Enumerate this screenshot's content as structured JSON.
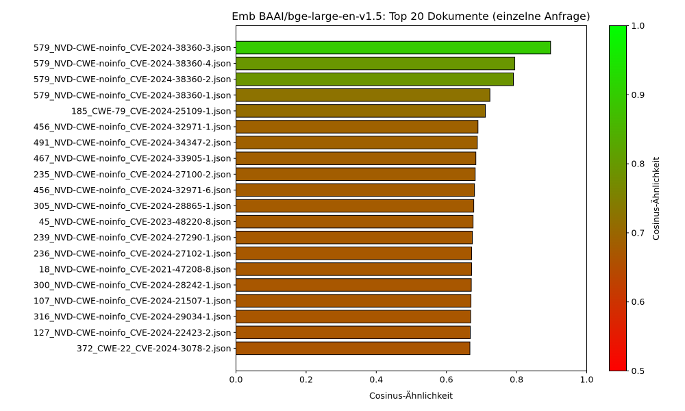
{
  "chart_data": {
    "type": "bar",
    "orientation": "horizontal",
    "title": "Emb BAAI/bge-large-en-v1.5: Top 20 Dokumente (einzelne Anfrage)",
    "xlabel": "Cosinus-Ähnlichkeit",
    "ylabel": "",
    "xlim": [
      0.0,
      1.0
    ],
    "xticks": [
      "0.0",
      "0.2",
      "0.4",
      "0.6",
      "0.8",
      "1.0"
    ],
    "grid": false,
    "categories": [
      "579_NVD-CWE-noinfo_CVE-2024-38360-3.json",
      "579_NVD-CWE-noinfo_CVE-2024-38360-4.json",
      "579_NVD-CWE-noinfo_CVE-2024-38360-2.json",
      "579_NVD-CWE-noinfo_CVE-2024-38360-1.json",
      "185_CWE-79_CVE-2024-25109-1.json",
      "456_NVD-CWE-noinfo_CVE-2024-32971-1.json",
      "491_NVD-CWE-noinfo_CVE-2024-34347-2.json",
      "467_NVD-CWE-noinfo_CVE-2024-33905-1.json",
      "235_NVD-CWE-noinfo_CVE-2024-27100-2.json",
      "456_NVD-CWE-noinfo_CVE-2024-32971-6.json",
      "305_NVD-CWE-noinfo_CVE-2024-28865-1.json",
      "45_NVD-CWE-noinfo_CVE-2023-48220-8.json",
      "239_NVD-CWE-noinfo_CVE-2024-27290-1.json",
      "236_NVD-CWE-noinfo_CVE-2024-27102-1.json",
      "18_NVD-CWE-noinfo_CVE-2021-47208-8.json",
      "300_NVD-CWE-noinfo_CVE-2024-28242-1.json",
      "107_NVD-CWE-noinfo_CVE-2024-21507-1.json",
      "316_NVD-CWE-noinfo_CVE-2024-29034-1.json",
      "127_NVD-CWE-noinfo_CVE-2024-22423-2.json",
      "372_CWE-22_CVE-2024-3078-2.json"
    ],
    "values": [
      0.897,
      0.795,
      0.791,
      0.724,
      0.711,
      0.69,
      0.688,
      0.684,
      0.682,
      0.68,
      0.678,
      0.676,
      0.674,
      0.672,
      0.672,
      0.671,
      0.67,
      0.669,
      0.668,
      0.667
    ],
    "colorbar": {
      "label": "Cosinus-Ähnlichkeit",
      "range": [
        0.5,
        1.0
      ],
      "ticks": [
        "0.5",
        "0.6",
        "0.7",
        "0.8",
        "0.9",
        "1.0"
      ],
      "color_low": "#ff0000",
      "color_high": "#00ff00"
    },
    "bar_edge_color": "#000000"
  }
}
